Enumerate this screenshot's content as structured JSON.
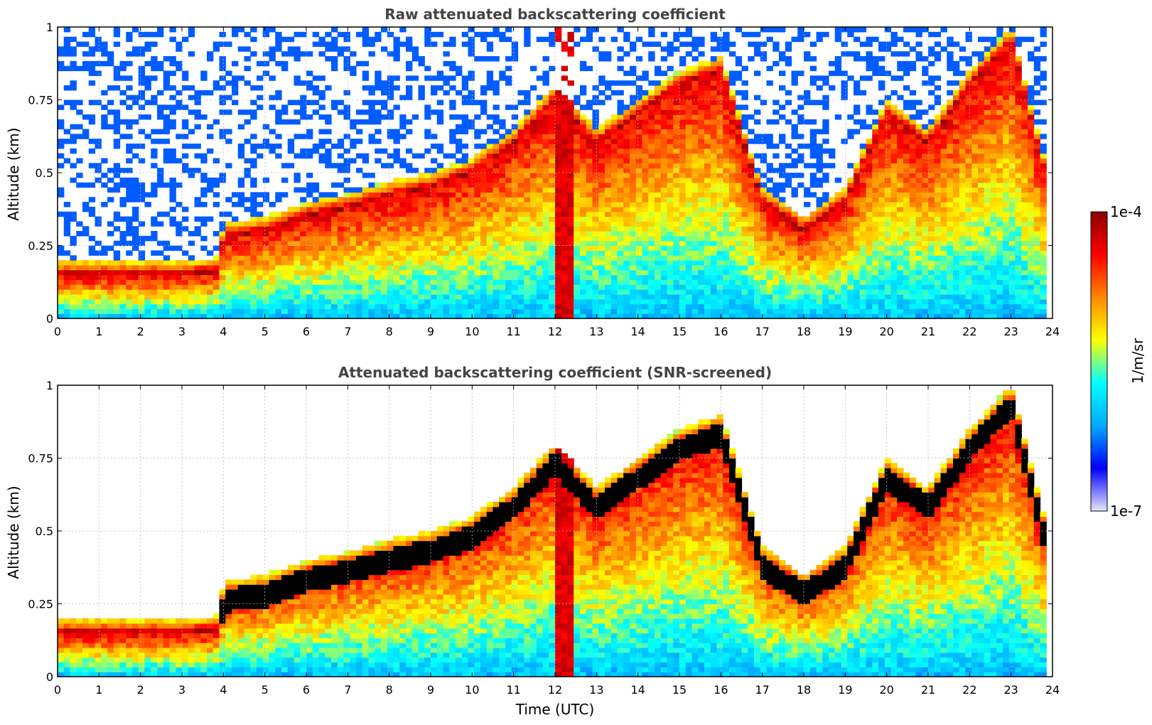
{
  "figure": {
    "panels": [
      {
        "title": "Raw attenuated backscattering coefficient",
        "ylabel": "Altitude (km)",
        "xlabel": "",
        "screened": false
      },
      {
        "title": "Attenuated backscattering coefficient (SNR-screened)",
        "ylabel": "Altitude (km)",
        "xlabel": "Time (UTC)",
        "screened": true
      }
    ],
    "colorbar": {
      "label": "1/m/sr",
      "max_label": "1e-4",
      "min_label": "1e-7",
      "colormap": [
        "#e6e6fa",
        "#0000ff",
        "#00aaff",
        "#00ffff",
        "#ffff00",
        "#ff8800",
        "#ff0000",
        "#8b0000"
      ]
    }
  },
  "chart_data": {
    "type": "heatmap",
    "x_label": "Time (UTC)",
    "y_label": "Altitude (km)",
    "xlim": [
      0,
      24
    ],
    "ylim": [
      0,
      1
    ],
    "x_ticks": [
      "0",
      "1",
      "2",
      "3",
      "4",
      "5",
      "6",
      "7",
      "8",
      "9",
      "10",
      "11",
      "12",
      "13",
      "14",
      "15",
      "16",
      "17",
      "18",
      "19",
      "20",
      "21",
      "22",
      "23",
      "24"
    ],
    "y_ticks": [
      "0",
      "0.25",
      "0.5",
      "0.75",
      "1"
    ],
    "grid": true,
    "color_scale": {
      "min": "1e-7",
      "max": "1e-4",
      "log": true,
      "unit": "1/m/sr"
    },
    "layer_top_km": [
      [
        0.0,
        0.15
      ],
      [
        1.0,
        0.15
      ],
      [
        2.0,
        0.15
      ],
      [
        3.0,
        0.15
      ],
      [
        3.9,
        0.16
      ],
      [
        4.0,
        0.28
      ],
      [
        5.0,
        0.3
      ],
      [
        6.0,
        0.35
      ],
      [
        7.0,
        0.38
      ],
      [
        8.0,
        0.42
      ],
      [
        9.0,
        0.45
      ],
      [
        10.0,
        0.5
      ],
      [
        11.0,
        0.6
      ],
      [
        12.0,
        0.75
      ],
      [
        13.0,
        0.6
      ],
      [
        14.0,
        0.7
      ],
      [
        15.0,
        0.8
      ],
      [
        16.0,
        0.85
      ],
      [
        17.0,
        0.4
      ],
      [
        18.0,
        0.3
      ],
      [
        19.0,
        0.4
      ],
      [
        20.0,
        0.7
      ],
      [
        21.0,
        0.6
      ],
      [
        22.0,
        0.8
      ],
      [
        23.0,
        0.95
      ],
      [
        23.8,
        0.5
      ]
    ]
  }
}
